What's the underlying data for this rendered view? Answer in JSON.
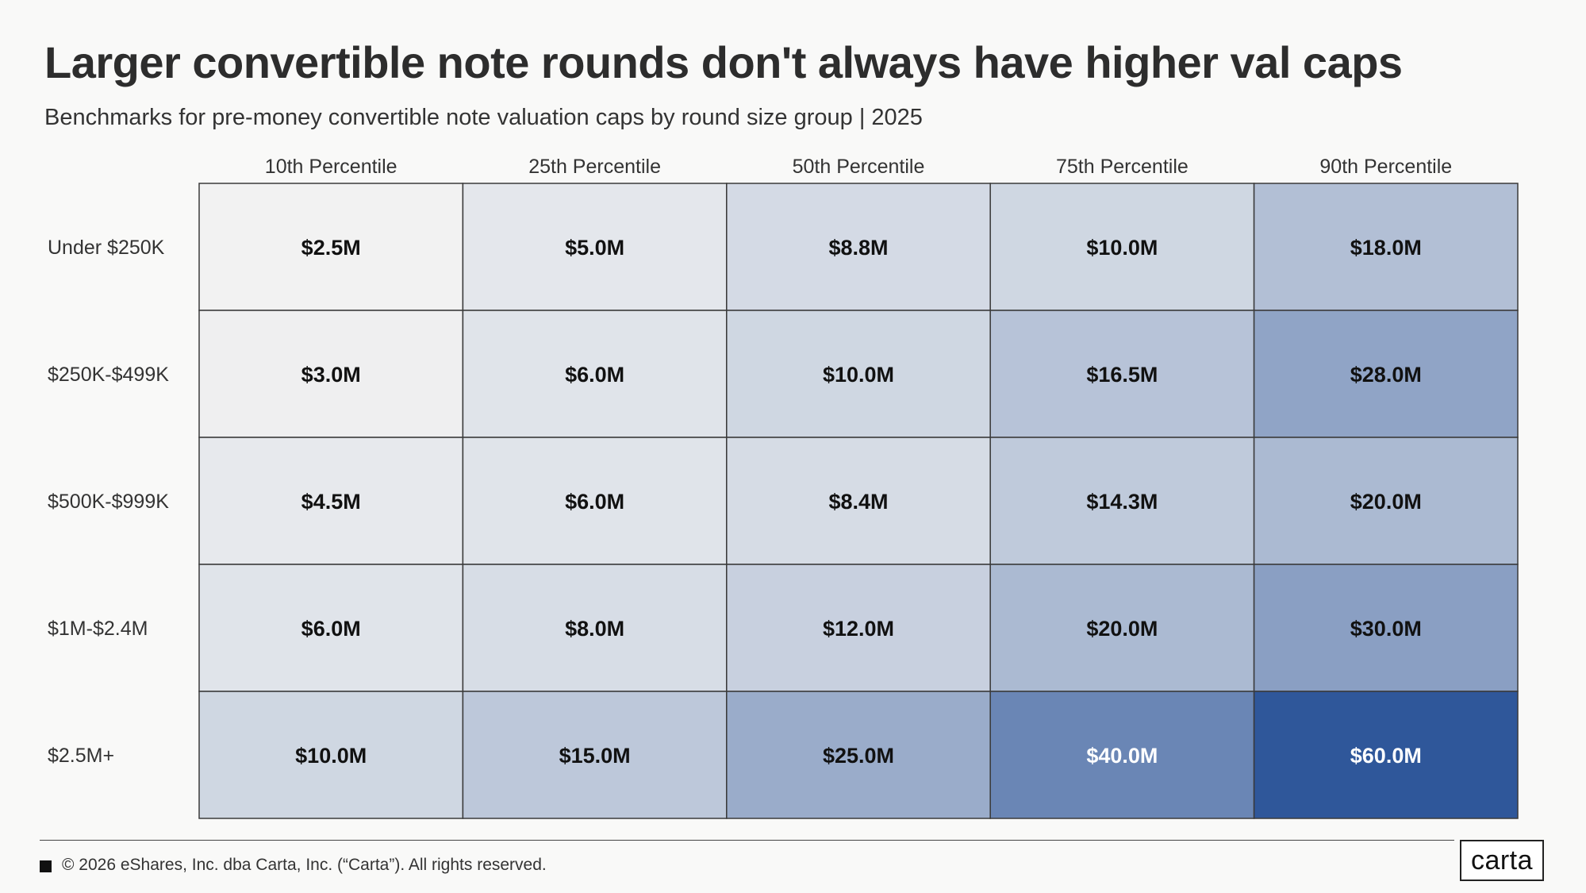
{
  "header": {
    "title": "Larger convertible note rounds don't always have higher val caps",
    "subtitle": "Benchmarks for pre-money convertible note valuation caps by round size group | 2025"
  },
  "chart_data": {
    "type": "heatmap",
    "title": "Larger convertible note rounds don't always have higher val caps",
    "subtitle": "Benchmarks for pre-money convertible note valuation caps by round size group | 2025",
    "columns": [
      "10th Percentile",
      "25th Percentile",
      "50th Percentile",
      "75th Percentile",
      "90th Percentile"
    ],
    "rows": [
      "Under $250K",
      "$250K-$499K",
      "$500K-$999K",
      "$1M-$2.4M",
      "$2.5M+"
    ],
    "values": [
      [
        2.5,
        5.0,
        8.8,
        10.0,
        18.0
      ],
      [
        3.0,
        6.0,
        10.0,
        16.5,
        28.0
      ],
      [
        4.5,
        6.0,
        8.4,
        14.3,
        20.0
      ],
      [
        6.0,
        8.0,
        12.0,
        20.0,
        30.0
      ],
      [
        10.0,
        15.0,
        25.0,
        40.0,
        60.0
      ]
    ],
    "labels": [
      [
        "$2.5M",
        "$5.0M",
        "$8.8M",
        "$10.0M",
        "$18.0M"
      ],
      [
        "$3.0M",
        "$6.0M",
        "$10.0M",
        "$16.5M",
        "$28.0M"
      ],
      [
        "$4.5M",
        "$6.0M",
        "$8.4M",
        "$14.3M",
        "$20.0M"
      ],
      [
        "$6.0M",
        "$8.0M",
        "$12.0M",
        "$20.0M",
        "$30.0M"
      ],
      [
        "$10.0M",
        "$15.0M",
        "$25.0M",
        "$40.0M",
        "$60.0M"
      ]
    ],
    "color_low": "#f2f2f2",
    "color_high": "#2f579a",
    "border_color": "#3a3a3a"
  },
  "footer": {
    "copyright": "© 2026 eShares, Inc. dba Carta, Inc. (“Carta”). All rights reserved.",
    "logo_text": "carta"
  }
}
